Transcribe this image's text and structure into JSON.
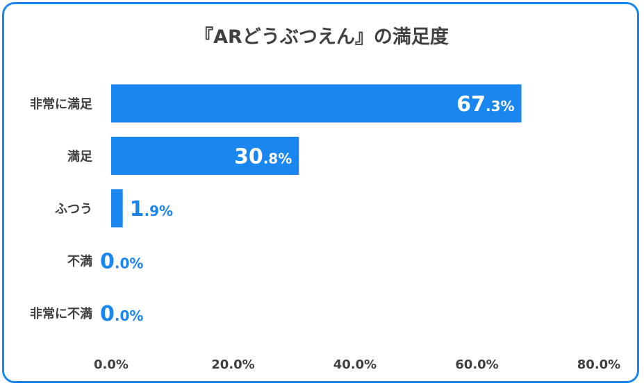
{
  "chart_data": {
    "type": "bar",
    "orientation": "horizontal",
    "title": "『ARどうぶつえん』の満足度",
    "categories": [
      "非常に満足",
      "満足",
      "ふつう",
      "不満",
      "非常に不満"
    ],
    "values": [
      67.3,
      30.8,
      1.9,
      0.0,
      0.0
    ],
    "value_labels": [
      {
        "int": "67",
        "dec": ".3%"
      },
      {
        "int": "30",
        "dec": ".8%"
      },
      {
        "int": "1",
        "dec": ".9%"
      },
      {
        "int": "0",
        "dec": ".0%"
      },
      {
        "int": "0",
        "dec": ".0%"
      }
    ],
    "xticks": [
      "0.0%",
      "20.0%",
      "40.0%",
      "60.0%",
      "80.0%"
    ],
    "xlim": [
      0,
      80
    ],
    "grid": false,
    "legend": "none",
    "xlabel": "",
    "ylabel": ""
  },
  "colors": {
    "bar": "#1a86f0",
    "border": "#1a86f0",
    "text": "#404040",
    "label_inside": "#ffffff",
    "label_outside": "#1a86f0"
  }
}
